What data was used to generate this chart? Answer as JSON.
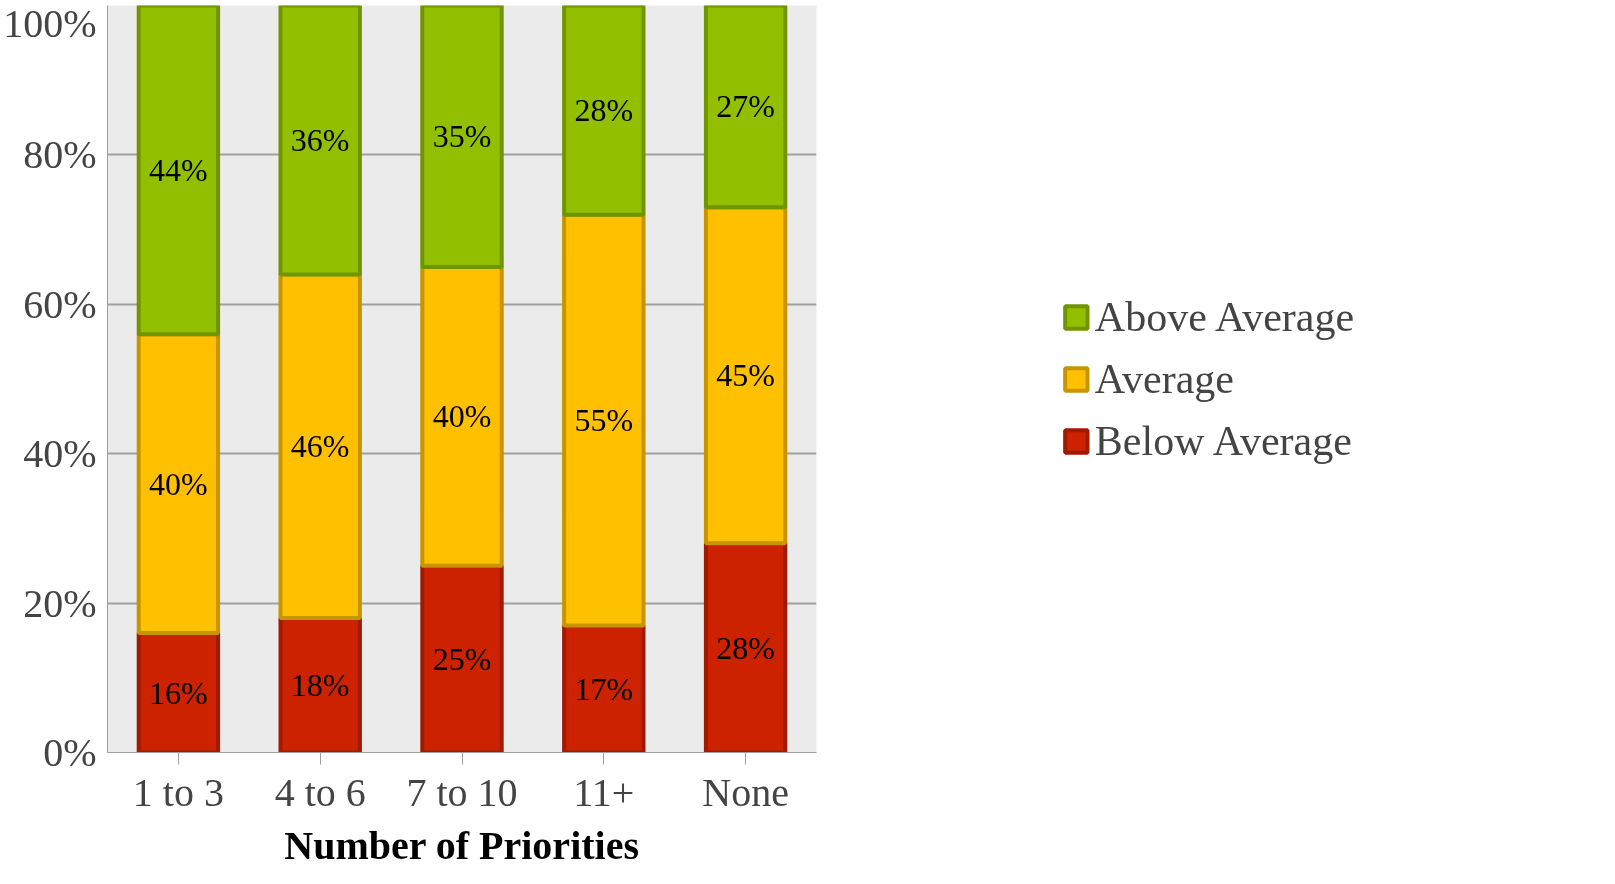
{
  "chart_data": {
    "type": "bar",
    "stacked": true,
    "xlabel": "Number of Priorities",
    "categories": [
      "1 to 3",
      "4 to 6",
      "7 to 10",
      "11+",
      "None"
    ],
    "series": [
      {
        "name": "Below Average",
        "color": "#cc2200",
        "values": [
          16,
          18,
          25,
          17,
          28
        ],
        "value_labels": [
          "16%",
          "18%",
          "25%",
          "17%",
          "28%"
        ]
      },
      {
        "name": "Average",
        "color": "#ffc000",
        "values": [
          40,
          46,
          40,
          55,
          45
        ],
        "value_labels": [
          "40%",
          "46%",
          "40%",
          "55%",
          "45%"
        ]
      },
      {
        "name": "Above Average",
        "color": "#92c000",
        "values": [
          44,
          36,
          35,
          28,
          27
        ],
        "value_labels": [
          "44%",
          "36%",
          "35%",
          "28%",
          "27%"
        ]
      }
    ],
    "ylim": [
      0,
      100
    ],
    "yticks": [
      {
        "value": 0,
        "label": "0%"
      },
      {
        "value": 20,
        "label": "20%"
      },
      {
        "value": 40,
        "label": "40%"
      },
      {
        "value": 60,
        "label": "60%"
      },
      {
        "value": 80,
        "label": "80%"
      },
      {
        "value": 100,
        "label": "100%"
      }
    ],
    "grid": "y",
    "legend": "right"
  }
}
